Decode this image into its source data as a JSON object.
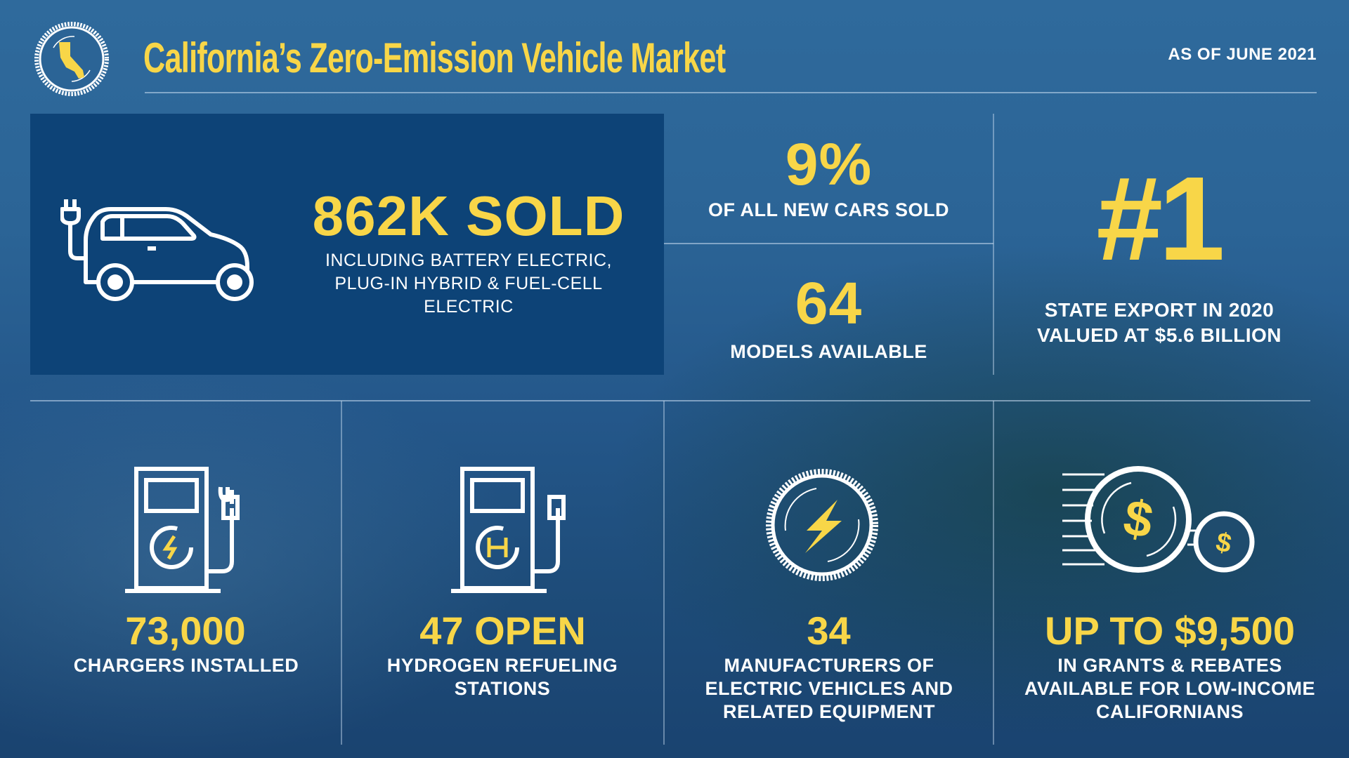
{
  "header": {
    "title": "California’s Zero-Emission Vehicle Market",
    "as_of": "AS OF JUNE 2021",
    "logo_icon": "california-seal-icon"
  },
  "colors": {
    "accent": "#f8d648",
    "panel": "#0d4377",
    "text": "#ffffff"
  },
  "top": {
    "sold": {
      "value": "862K SOLD",
      "label": "INCLUDING BATTERY ELECTRIC, PLUG-IN HYBRID & FUEL-CELL ELECTRIC",
      "icon": "electric-car-icon"
    },
    "share": {
      "value": "9%",
      "label": "OF ALL NEW CARS SOLD"
    },
    "models": {
      "value": "64",
      "label": "MODELS AVAILABLE"
    },
    "export": {
      "value": "#1",
      "label": "STATE EXPORT IN 2020 VALUED AT $5.6 BILLION"
    }
  },
  "bottom": [
    {
      "value": "73,000",
      "label": "CHARGERS INSTALLED",
      "icon": "ev-charger-icon"
    },
    {
      "value": "47 OPEN",
      "label": "HYDROGEN REFUELING STATIONS",
      "icon": "hydrogen-pump-icon"
    },
    {
      "value": "34",
      "label": "MANUFACTURERS OF ELECTRIC VEHICLES AND RELATED EQUIPMENT",
      "icon": "lightning-gear-icon"
    },
    {
      "value": "UP TO $9,500",
      "label": "IN GRANTS & REBATES AVAILABLE FOR LOW-INCOME CALIFORNIANS",
      "icon": "dollar-coins-icon"
    }
  ]
}
